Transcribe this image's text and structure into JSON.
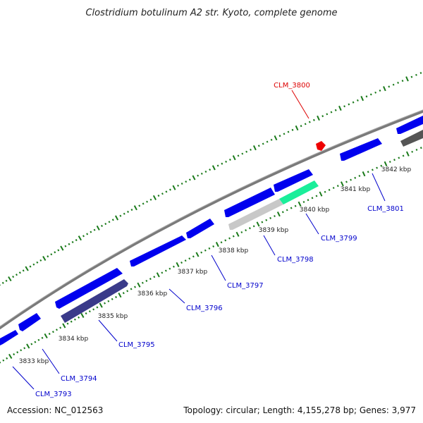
{
  "title": "Clostridium botulinum A2 str. Kyoto, complete genome",
  "footer": {
    "accession": "Accession: NC_012563",
    "summary": "Topology: circular; Length: 4,155,278 bp; Genes: 3,977"
  },
  "colors": {
    "forward_gene": "#0000ee",
    "reverse_gene": "#3a3a8a",
    "highlight_gene": "#1aee9a",
    "pseudo_gene": "#c8c8c8",
    "dark_gene": "#555555",
    "selected": "#ee0000",
    "backbone": "#888888",
    "ticks": "#1a7a1a",
    "label": "#0000cc",
    "selected_label": "#dd0000"
  },
  "kbp_labels": [
    "3833 kbp",
    "3834 kbp",
    "3835 kbp",
    "3836 kbp",
    "3837 kbp",
    "3838 kbp",
    "3839 kbp",
    "3840 kbp",
    "3841 kbp",
    "3842 kbp"
  ],
  "genes": [
    {
      "label": "CLM_3793",
      "color": "label"
    },
    {
      "label": "CLM_3794",
      "color": "label"
    },
    {
      "label": "CLM_3795",
      "color": "label"
    },
    {
      "label": "CLM_3796",
      "color": "label"
    },
    {
      "label": "CLM_3797",
      "color": "label"
    },
    {
      "label": "CLM_3798",
      "color": "label"
    },
    {
      "label": "CLM_3799",
      "color": "label"
    },
    {
      "label": "CLM_3800",
      "color": "selected_label"
    },
    {
      "label": "CLM_3801",
      "color": "label"
    }
  ]
}
